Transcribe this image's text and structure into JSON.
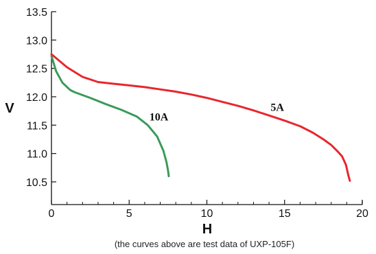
{
  "chart_data": {
    "type": "line",
    "xlabel": "H",
    "ylabel": "V",
    "xlim": [
      0,
      20
    ],
    "ylim": [
      10.1,
      13.5
    ],
    "x_ticks": [
      0,
      5,
      10,
      15,
      20
    ],
    "y_ticks": [
      10.5,
      11.0,
      11.5,
      12.0,
      12.5,
      13.0,
      13.5
    ],
    "x_tick_labels": [
      "0",
      "5",
      "10",
      "15",
      "20"
    ],
    "y_tick_labels": [
      "10.5",
      "11.0",
      "11.5",
      "12.0",
      "12.5",
      "13.0",
      "13.5"
    ],
    "grid": false,
    "series": [
      {
        "name": "10A",
        "color": "#3a9a5a",
        "label_at": [
          6.3,
          11.58
        ],
        "x": [
          0,
          0.3,
          0.7,
          1.2,
          1.5,
          2.5,
          3.5,
          4.5,
          5.5,
          6.2,
          6.8,
          7.2,
          7.4,
          7.5,
          7.55
        ],
        "y": [
          12.72,
          12.45,
          12.25,
          12.12,
          12.08,
          11.98,
          11.87,
          11.77,
          11.65,
          11.5,
          11.3,
          11.05,
          10.85,
          10.7,
          10.6
        ]
      },
      {
        "name": "5A",
        "color": "#e8262d",
        "label_at": [
          14.1,
          11.75
        ],
        "x": [
          0,
          1,
          2,
          3,
          4,
          5,
          6,
          7,
          8,
          9,
          10,
          11,
          12,
          13,
          14,
          15,
          16,
          16.8,
          17.5,
          18,
          18.4,
          18.7,
          18.95,
          19.1,
          19.2
        ],
        "y": [
          12.75,
          12.52,
          12.35,
          12.26,
          12.23,
          12.2,
          12.17,
          12.13,
          12.09,
          12.04,
          11.98,
          11.91,
          11.84,
          11.76,
          11.67,
          11.58,
          11.48,
          11.37,
          11.25,
          11.15,
          11.04,
          10.95,
          10.8,
          10.62,
          10.52
        ]
      }
    ]
  },
  "caption": "(the curves above are test data of UXP-105F)"
}
